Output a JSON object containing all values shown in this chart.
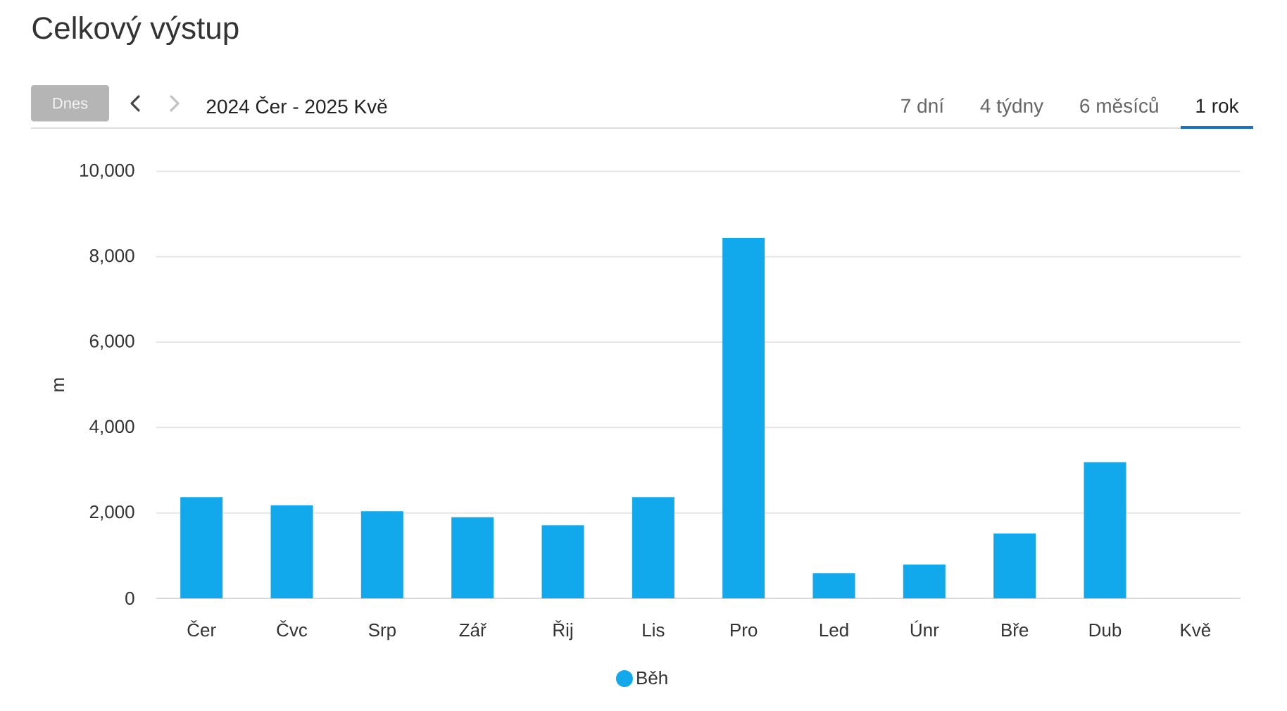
{
  "chart_data": {
    "type": "bar",
    "title": "Celkový výstup",
    "subtitle": "2024 Čer - 2025 Kvě",
    "annotations": [
      "Dnes",
      "7 dní",
      "4 týdny",
      "6 měsíců",
      "1 rok"
    ],
    "ylabel": "m",
    "categories": [
      "Čer",
      "Čvc",
      "Srp",
      "Zář",
      "Řij",
      "Lis",
      "Pro",
      "Led",
      "Únr",
      "Bře",
      "Dub",
      "Kvě"
    ],
    "series": [
      {
        "name": "Běh",
        "color": "#12a8ec",
        "values": [
          2370,
          2180,
          2040,
          1900,
          1710,
          2370,
          8440,
          590,
          790,
          1520,
          3190,
          0
        ]
      }
    ],
    "ylim": [
      0,
      10000
    ],
    "yticks": [
      0,
      {
        "value": 2000,
        "label": "2,000"
      },
      {
        "value": 4000,
        "label": "4,000"
      },
      {
        "value": 6000,
        "label": "6,000"
      },
      {
        "value": 8000,
        "label": "8,000"
      },
      {
        "value": 10000,
        "label": "10,000"
      }
    ],
    "grid": "y",
    "legend": "bottom"
  }
}
